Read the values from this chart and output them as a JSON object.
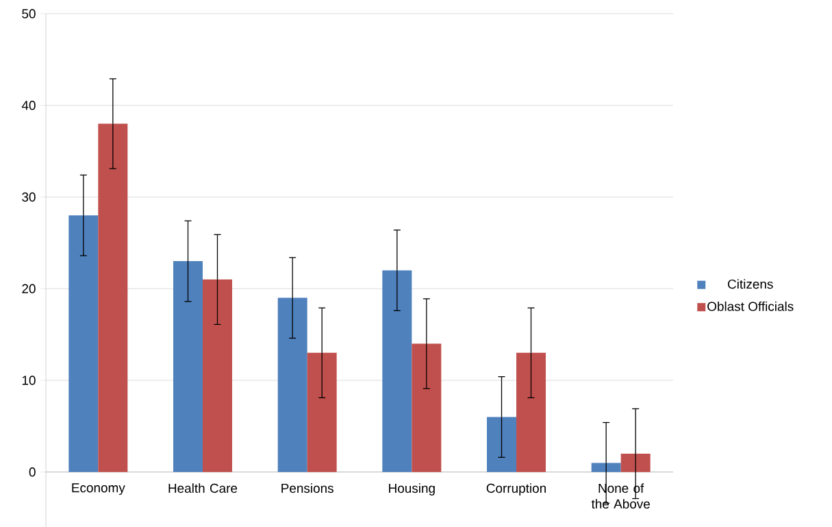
{
  "chart_data": {
    "type": "bar",
    "categories": [
      "Economy",
      "Health Care",
      "Pensions",
      "Housing",
      "Corruption",
      "None of the Above"
    ],
    "series": [
      {
        "name": "Citizens",
        "color": "#4f81bd",
        "values": [
          28,
          23,
          19,
          22,
          6,
          1
        ],
        "errors": [
          4.4,
          4.4,
          4.4,
          4.4,
          4.4,
          4.4
        ]
      },
      {
        "name": "Oblast Officials",
        "color": "#c0504d",
        "values": [
          38,
          21,
          13,
          14,
          13,
          2
        ],
        "errors": [
          4.9,
          4.9,
          4.9,
          4.9,
          4.9,
          4.9
        ]
      }
    ],
    "ylim": [
      -6,
      50
    ],
    "yticks": [
      0,
      10,
      20,
      30,
      40,
      50
    ],
    "grid": "y",
    "legend": "right"
  }
}
